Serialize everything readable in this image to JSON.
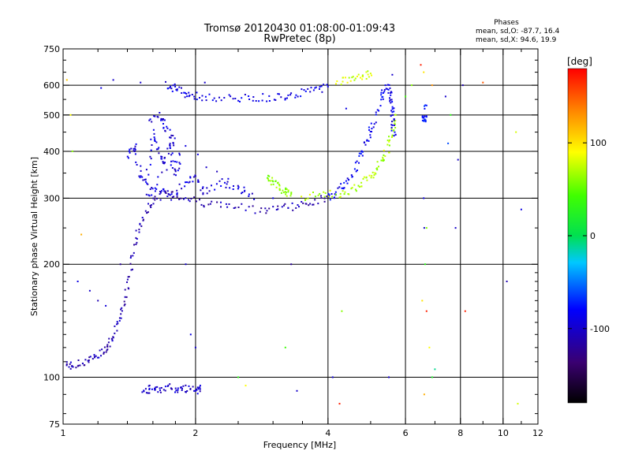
{
  "chart_data": {
    "type": "scatter",
    "title": "Tromsø 20120430 01:08:00-01:09:43",
    "subtitle": "RwPretec (8p)",
    "xlabel": "Frequency [MHz]",
    "ylabel": "Stationary phase Virtual Height [km]",
    "x_scale": "log",
    "y_scale": "log",
    "xlim": [
      1,
      12
    ],
    "ylim": [
      75,
      750
    ],
    "x_ticks": [
      1,
      2,
      4,
      6,
      8,
      10,
      12
    ],
    "x_tick_labels": [
      "1",
      "2",
      "4",
      "6",
      "8",
      "10",
      "12"
    ],
    "y_ticks": [
      75,
      100,
      200,
      300,
      400,
      500,
      600,
      750
    ],
    "y_tick_labels": [
      "75",
      "100",
      "200",
      "300",
      "400",
      "500",
      "600",
      "750"
    ],
    "grid": true,
    "colorbar": {
      "label": "[deg]",
      "min": -180,
      "max": 180,
      "ticks": [
        100,
        0,
        -100
      ],
      "tick_labels": [
        "100",
        "0",
        "-100"
      ]
    },
    "stats": {
      "heading": "Phases",
      "line1": "mean, sd,O: -87.7, 16.4",
      "line2": "mean, sd,X:  94.6, 19.9"
    },
    "traces": [
      {
        "name": "",
        "phase": -110,
        "points": [
          [
            1.02,
            108
          ],
          [
            1.06,
            107
          ],
          [
            1.12,
            110
          ],
          [
            1.18,
            113
          ],
          [
            1.24,
            118
          ],
          [
            1.28,
            124
          ],
          [
            1.32,
            134
          ],
          [
            1.36,
            150
          ],
          [
            1.4,
            175
          ],
          [
            1.44,
            210
          ],
          [
            1.48,
            245
          ],
          [
            1.54,
            275
          ],
          [
            1.62,
            300
          ],
          [
            1.75,
            310
          ],
          [
            1.9,
            300
          ],
          [
            2.1,
            292
          ],
          [
            2.4,
            285
          ],
          [
            2.8,
            280
          ],
          [
            3.1,
            283
          ],
          [
            3.4,
            287
          ],
          [
            3.7,
            294
          ],
          [
            4.0,
            302
          ]
        ]
      },
      {
        "name": "",
        "phase": -95,
        "points": [
          [
            1.4,
            380
          ],
          [
            1.45,
            420
          ],
          [
            1.5,
            350
          ],
          [
            1.55,
            330
          ],
          [
            1.6,
            450
          ],
          [
            1.65,
            400
          ],
          [
            1.7,
            370
          ],
          [
            1.75,
            430
          ],
          [
            1.8,
            340
          ],
          [
            1.85,
            390
          ],
          [
            1.55,
            310
          ],
          [
            1.65,
            320
          ],
          [
            1.75,
            300
          ],
          [
            1.9,
            330
          ],
          [
            2.0,
            340
          ],
          [
            2.1,
            310
          ],
          [
            2.3,
            330
          ],
          [
            2.5,
            320
          ],
          [
            2.7,
            300
          ],
          [
            1.58,
            480
          ],
          [
            1.68,
            500
          ],
          [
            1.72,
            460
          ],
          [
            1.78,
            420
          ]
        ]
      },
      {
        "name": "",
        "phase": -90,
        "points": [
          [
            1.72,
            600
          ],
          [
            1.8,
            590
          ],
          [
            1.9,
            570
          ],
          [
            2.0,
            560
          ],
          [
            2.2,
            555
          ],
          [
            2.5,
            552
          ],
          [
            2.8,
            555
          ],
          [
            3.1,
            560
          ],
          [
            3.4,
            570
          ],
          [
            3.7,
            580
          ],
          [
            4.0,
            595
          ]
        ]
      },
      {
        "name": "",
        "phase": 80,
        "points": [
          [
            4.2,
            615
          ],
          [
            4.5,
            625
          ],
          [
            4.8,
            635
          ],
          [
            5.0,
            645
          ]
        ]
      },
      {
        "name": "",
        "phase": -85,
        "points": [
          [
            4.0,
            300
          ],
          [
            4.2,
            310
          ],
          [
            4.4,
            330
          ],
          [
            4.6,
            360
          ],
          [
            4.8,
            400
          ],
          [
            4.95,
            440
          ],
          [
            5.1,
            480
          ],
          [
            5.3,
            560
          ],
          [
            5.4,
            600
          ]
        ]
      },
      {
        "name": "",
        "phase": 70,
        "points": [
          [
            3.5,
            303
          ],
          [
            3.9,
            305
          ],
          [
            4.3,
            310
          ],
          [
            4.6,
            320
          ],
          [
            4.9,
            335
          ],
          [
            5.1,
            350
          ],
          [
            5.3,
            375
          ],
          [
            5.5,
            410
          ],
          [
            5.6,
            450
          ],
          [
            5.7,
            500
          ]
        ]
      },
      {
        "name": "",
        "phase": 60,
        "points": [
          [
            2.9,
            340
          ],
          [
            3.0,
            330
          ],
          [
            3.1,
            320
          ],
          [
            3.2,
            312
          ],
          [
            3.3,
            308
          ]
        ]
      },
      {
        "name": "",
        "phase": -100,
        "points": [
          [
            1.52,
            92
          ],
          [
            1.58,
            93
          ],
          [
            1.64,
            92
          ],
          [
            1.72,
            94
          ],
          [
            1.82,
            92
          ],
          [
            1.9,
            93
          ],
          [
            2.0,
            92
          ],
          [
            2.05,
            93
          ]
        ]
      },
      {
        "name": "",
        "phase": -90,
        "points": [
          [
            5.5,
            600
          ],
          [
            5.55,
            560
          ],
          [
            5.6,
            520
          ],
          [
            5.62,
            480
          ],
          [
            5.65,
            440
          ]
        ]
      },
      {
        "name": "",
        "phase": -75,
        "points": [
          [
            6.6,
            500
          ],
          [
            6.65,
            480
          ],
          [
            6.7,
            530
          ]
        ]
      }
    ],
    "noise": [
      [
        1.02,
        620,
        110
      ],
      [
        1.04,
        500,
        90
      ],
      [
        1.05,
        400,
        60
      ],
      [
        1.1,
        240,
        120
      ],
      [
        1.08,
        180,
        -90
      ],
      [
        1.15,
        170,
        -100
      ],
      [
        1.2,
        160,
        -110
      ],
      [
        1.25,
        155,
        -95
      ],
      [
        1.3,
        620,
        -100
      ],
      [
        1.22,
        590,
        -90
      ],
      [
        1.35,
        200,
        -120
      ],
      [
        1.5,
        610,
        -100
      ],
      [
        1.9,
        200,
        -100
      ],
      [
        1.95,
        130,
        -90
      ],
      [
        2.0,
        120,
        -100
      ],
      [
        2.05,
        95,
        -90
      ],
      [
        2.1,
        610,
        -100
      ],
      [
        2.5,
        100,
        30
      ],
      [
        2.6,
        95,
        90
      ],
      [
        3.0,
        300,
        -90
      ],
      [
        3.3,
        200,
        -120
      ],
      [
        3.2,
        120,
        40
      ],
      [
        3.4,
        92,
        -100
      ],
      [
        4.1,
        100,
        -95
      ],
      [
        4.25,
        85,
        170
      ],
      [
        4.3,
        150,
        60
      ],
      [
        4.4,
        520,
        -90
      ],
      [
        5.5,
        100,
        -100
      ],
      [
        5.6,
        640,
        -100
      ],
      [
        6.0,
        560,
        40
      ],
      [
        6.2,
        600,
        60
      ],
      [
        6.5,
        680,
        170
      ],
      [
        6.55,
        160,
        100
      ],
      [
        6.6,
        300,
        -90
      ],
      [
        6.62,
        250,
        -100
      ],
      [
        6.65,
        200,
        30
      ],
      [
        6.7,
        250,
        60
      ],
      [
        6.7,
        150,
        170
      ],
      [
        6.8,
        120,
        90
      ],
      [
        6.9,
        100,
        20
      ],
      [
        7.0,
        105,
        -10
      ],
      [
        6.6,
        650,
        100
      ],
      [
        6.9,
        600,
        130
      ],
      [
        7.4,
        560,
        -100
      ],
      [
        7.6,
        500,
        30
      ],
      [
        7.5,
        420,
        -60
      ],
      [
        7.9,
        380,
        -100
      ],
      [
        8.1,
        600,
        -110
      ],
      [
        7.8,
        250,
        -100
      ],
      [
        8.2,
        150,
        170
      ],
      [
        9.0,
        610,
        150
      ],
      [
        10.2,
        180,
        -110
      ],
      [
        10.7,
        450,
        80
      ],
      [
        11.0,
        280,
        -90
      ],
      [
        10.8,
        85,
        80
      ],
      [
        6.62,
        90,
        120
      ]
    ]
  }
}
